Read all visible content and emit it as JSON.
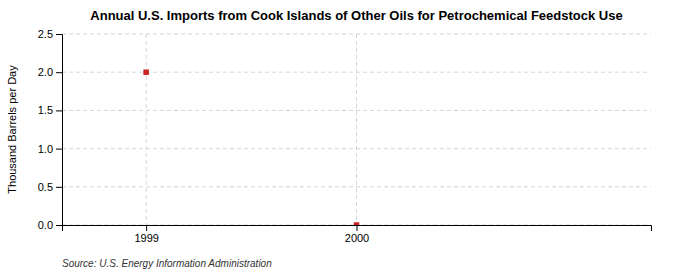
{
  "chart_data": {
    "type": "scatter",
    "title": "Annual U.S. Imports from Cook Islands of Other Oils for Petrochemical Feedstock Use",
    "ylabel": "Thousand Barrels per Day",
    "source": "Source: U.S. Energy Information Administration",
    "x": [
      1999,
      2000
    ],
    "values": [
      2.0,
      0.0
    ],
    "color": "#cc2222",
    "marker": "square",
    "xlim": [
      1998.6,
      2001.4
    ],
    "xticks": [
      1999,
      2000
    ],
    "ylim": [
      0.0,
      2.5
    ],
    "yticks": [
      {
        "value": 0.0,
        "label": "0.0"
      },
      0.5,
      {
        "value": 1.0,
        "label": "1.0"
      },
      1.5,
      {
        "value": 2.0,
        "label": "2.0"
      },
      2.5
    ],
    "grid": true
  }
}
